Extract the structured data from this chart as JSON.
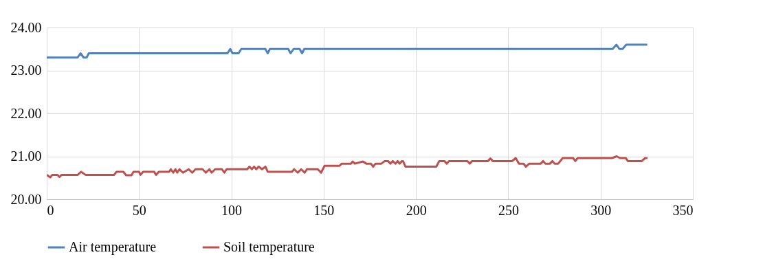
{
  "chart_data": {
    "type": "line",
    "series": [
      {
        "name": "Air temperature",
        "color": "#4f81bd",
        "x": [
          0,
          16.7,
          18.3,
          20,
          21.6,
          22.8,
          97.9,
          99.4,
          100.6,
          103.9,
          105.4,
          118.4,
          119.7,
          120.9,
          130.8,
          132.1,
          133.7,
          137,
          138.3,
          139.5,
          306.5,
          308.6,
          310.2,
          311.9,
          313.9,
          325.3
        ],
        "values": [
          23.3,
          23.3,
          23.4,
          23.3,
          23.3,
          23.4,
          23.4,
          23.5,
          23.4,
          23.4,
          23.5,
          23.5,
          23.4,
          23.5,
          23.5,
          23.4,
          23.5,
          23.5,
          23.4,
          23.5,
          23.5,
          23.6,
          23.5,
          23.5,
          23.6,
          23.6
        ]
      },
      {
        "name": "Soil temperature",
        "color": "#c0504d",
        "x": [
          0,
          1.9,
          3,
          5.7,
          6.9,
          8.1,
          16.8,
          18.6,
          21,
          36.5,
          37.8,
          41.5,
          43,
          45.9,
          47,
          50,
          50.8,
          52.2,
          58.2,
          59.2,
          60.7,
          66.3,
          67.2,
          68.5,
          69.7,
          70.7,
          71.9,
          73.8,
          76.9,
          78.8,
          80.6,
          84.4,
          86.2,
          88.1,
          89.3,
          91.2,
          94.9,
          96.2,
          97.4,
          108.6,
          109.8,
          111.1,
          112.3,
          113.5,
          114.8,
          116.6,
          118.5,
          119.7,
          132.8,
          134,
          136,
          137.8,
          139.7,
          140.9,
          144.3,
          146.8,
          148.6,
          150.5,
          158.6,
          159.8,
          164.8,
          165.7,
          166.9,
          171.3,
          173.1,
          175.6,
          176.8,
          178.1,
          181.2,
          183.1,
          184.9,
          186.2,
          187.4,
          188.9,
          190.1,
          191.1,
          192.4,
          193,
          194.3,
          211,
          212.6,
          215.4,
          216.7,
          217.9,
          227.9,
          229.1,
          230.4,
          239,
          240.3,
          241.6,
          252.1,
          254,
          255.8,
          258.3,
          259.5,
          261.4,
          267.6,
          268.9,
          270.1,
          272.6,
          273.9,
          275.1,
          277,
          279.5,
          285.1,
          286.3,
          287.6,
          306.2,
          308.7,
          310.5,
          313.6,
          314.8,
          322.3,
          324.2,
          325.4
        ],
        "values": [
          20.57,
          20.51,
          20.57,
          20.57,
          20.52,
          20.57,
          20.57,
          20.64,
          20.57,
          20.57,
          20.64,
          20.64,
          20.56,
          20.56,
          20.64,
          20.64,
          20.57,
          20.64,
          20.64,
          20.57,
          20.64,
          20.64,
          20.7,
          20.62,
          20.7,
          20.62,
          20.7,
          20.62,
          20.7,
          20.62,
          20.7,
          20.7,
          20.62,
          20.7,
          20.62,
          20.7,
          20.7,
          20.62,
          20.7,
          20.7,
          20.76,
          20.7,
          20.76,
          20.7,
          20.76,
          20.7,
          20.76,
          20.64,
          20.64,
          20.7,
          20.62,
          20.7,
          20.62,
          20.7,
          20.7,
          20.7,
          20.62,
          20.78,
          20.78,
          20.83,
          20.83,
          20.88,
          20.83,
          20.88,
          20.83,
          20.83,
          20.76,
          20.83,
          20.83,
          20.89,
          20.89,
          20.83,
          20.89,
          20.83,
          20.89,
          20.83,
          20.89,
          20.89,
          20.76,
          20.76,
          20.89,
          20.89,
          20.83,
          20.89,
          20.89,
          20.83,
          20.89,
          20.89,
          20.95,
          20.89,
          20.89,
          20.96,
          20.83,
          20.83,
          20.76,
          20.83,
          20.83,
          20.89,
          20.83,
          20.83,
          20.89,
          20.83,
          20.83,
          20.96,
          20.96,
          20.89,
          20.96,
          20.96,
          21.0,
          20.96,
          20.96,
          20.89,
          20.89,
          20.96,
          20.96
        ]
      }
    ],
    "xlim": [
      0,
      350
    ],
    "xticks": [
      0,
      50,
      100,
      150,
      200,
      250,
      300,
      350
    ],
    "ylim": [
      20,
      24
    ],
    "yticks": [
      {
        "value": 20,
        "label": "20.00"
      },
      {
        "value": 21,
        "label": "21.00"
      },
      {
        "value": 22,
        "label": "22.00"
      },
      {
        "value": 23,
        "label": "23.00"
      },
      {
        "value": 24,
        "label": "24.00"
      }
    ],
    "grid": true,
    "legend": "bottom",
    "marker": "none",
    "line_style": "solid"
  }
}
